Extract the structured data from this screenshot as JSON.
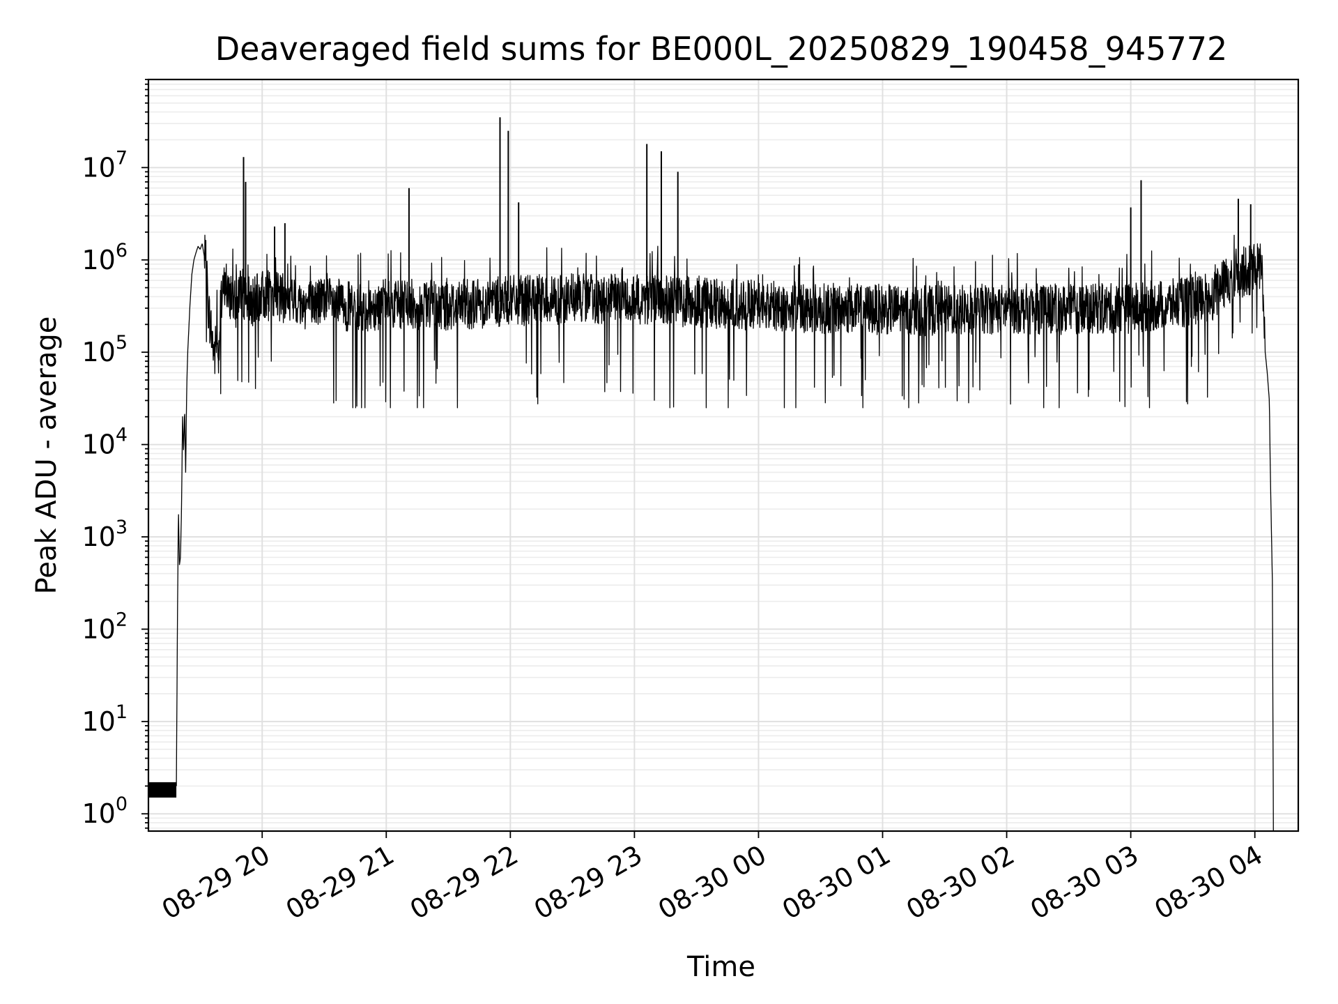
{
  "chart_data": {
    "type": "line",
    "title": "Deaveraged field sums for BE000L_20250829_190458_945772",
    "xlabel": "Time",
    "ylabel": "Peak ADU - average",
    "yscale": "log",
    "ylim": [
      0.65,
      90000000
    ],
    "xlim": [
      "2025-08-29 19:05:00",
      "2025-08-30 04:21:00"
    ],
    "grid": true,
    "legend": "none",
    "x_ticks": [
      {
        "t": "2025-08-29 20:00",
        "label": "08-29 20"
      },
      {
        "t": "2025-08-29 21:00",
        "label": "08-29 21"
      },
      {
        "t": "2025-08-29 22:00",
        "label": "08-29 22"
      },
      {
        "t": "2025-08-29 23:00",
        "label": "08-29 23"
      },
      {
        "t": "2025-08-30 00:00",
        "label": "08-30 00"
      },
      {
        "t": "2025-08-30 01:00",
        "label": "08-30 01"
      },
      {
        "t": "2025-08-30 02:00",
        "label": "08-30 02"
      },
      {
        "t": "2025-08-30 03:00",
        "label": "08-30 03"
      },
      {
        "t": "2025-08-30 04:00",
        "label": "08-30 04"
      }
    ],
    "y_ticks": [
      {
        "value": 1,
        "base": "10",
        "exp": "0"
      },
      {
        "value": 10,
        "base": "10",
        "exp": "1"
      },
      {
        "value": 100,
        "base": "10",
        "exp": "2"
      },
      {
        "value": 1000,
        "base": "10",
        "exp": "3"
      },
      {
        "value": 10000,
        "base": "10",
        "exp": "4"
      },
      {
        "value": 100000,
        "base": "10",
        "exp": "5"
      },
      {
        "value": 1000000,
        "base": "10",
        "exp": "6"
      },
      {
        "value": 10000000,
        "base": "10",
        "exp": "7"
      }
    ],
    "series": [
      {
        "color": "#000000",
        "initial_band": {
          "t_start": "2025-08-29 19:05:00",
          "t_end": "2025-08-29 19:18:30",
          "low": 1.5,
          "high": 2.2
        },
        "x": [
          "2025-08-29 19:18:30",
          "2025-08-29 19:19:00",
          "2025-08-29 19:19:30",
          "2025-08-29 19:20:00",
          "2025-08-29 19:20:30",
          "2025-08-29 19:21:00",
          "2025-08-29 19:21:30",
          "2025-08-29 19:22:00",
          "2025-08-29 19:22:30",
          "2025-08-29 19:23:00",
          "2025-08-29 19:23:30",
          "2025-08-29 19:24:00",
          "2025-08-29 19:25:00",
          "2025-08-29 19:26:00",
          "2025-08-29 19:27:00",
          "2025-08-29 19:28:00",
          "2025-08-29 19:29:00",
          "2025-08-29 19:30:00",
          "2025-08-29 19:31:00",
          "2025-08-29 19:32:00",
          "2025-08-29 19:33:00",
          "2025-08-29 19:34:00",
          "2025-08-29 19:35:00",
          "2025-08-29 19:36:00",
          "2025-08-29 19:37:00",
          "2025-08-29 19:38:00",
          "2025-08-29 19:39:00",
          "2025-08-29 19:40:00",
          "2025-08-29 19:41:00",
          "2025-08-29 19:42:00",
          "2025-08-29 19:43:00",
          "2025-08-29 19:44:00",
          "2025-08-29 19:45:00",
          "2025-08-29 19:47:00",
          "2025-08-29 19:49:00",
          "2025-08-29 19:52:00",
          "2025-08-29 19:56:00",
          "2025-08-29 20:00:00",
          "2025-08-29 20:10:00",
          "2025-08-29 20:20:00",
          "2025-08-29 20:30:00",
          "2025-08-29 20:45:00",
          "2025-08-29 21:00:00",
          "2025-08-29 21:30:00",
          "2025-08-29 22:00:00",
          "2025-08-29 22:30:00",
          "2025-08-29 23:00:00",
          "2025-08-29 23:30:00",
          "2025-08-30 00:00:00",
          "2025-08-30 00:30:00",
          "2025-08-30 01:00:00",
          "2025-08-30 01:30:00",
          "2025-08-30 02:00:00",
          "2025-08-30 02:30:00",
          "2025-08-30 03:00:00",
          "2025-08-30 03:30:00",
          "2025-08-30 03:40:00",
          "2025-08-30 03:50:00",
          "2025-08-30 04:00:00",
          "2025-08-30 04:03:00",
          "2025-08-30 04:04:00",
          "2025-08-30 04:05:00",
          "2025-08-30 04:06:00",
          "2025-08-30 04:07:00",
          "2025-08-30 04:07:30",
          "2025-08-30 04:08:00",
          "2025-08-30 04:08:30",
          "2025-08-30 04:09:00"
        ],
        "y": [
          2,
          100,
          2000,
          500,
          600,
          2000,
          20000,
          8000,
          25000,
          5000,
          40000,
          100000,
          300000,
          700000,
          1000000,
          1200000,
          1400000,
          1300000,
          1500000,
          1100000,
          800000,
          300000,
          200000,
          130000,
          90000,
          150000,
          100000,
          300000,
          400000,
          600000,
          500000,
          350000,
          450000,
          300000,
          500000,
          400000,
          350000,
          420000,
          380000,
          330000,
          360000,
          300000,
          340000,
          320000,
          360000,
          380000,
          370000,
          350000,
          320000,
          300000,
          290000,
          280000,
          300000,
          290000,
          300000,
          350000,
          420000,
          700000,
          800000,
          900000,
          500000,
          100000,
          60000,
          30000,
          5000,
          1200,
          300,
          0.5
        ]
      }
    ],
    "spikes": [
      {
        "t": "2025-08-29 19:51:00",
        "y": 13000000
      },
      {
        "t": "2025-08-29 19:52:00",
        "y": 7000000
      },
      {
        "t": "2025-08-29 20:06:00",
        "y": 2300000
      },
      {
        "t": "2025-08-29 20:11:00",
        "y": 2500000
      },
      {
        "t": "2025-08-29 21:11:00",
        "y": 6000000
      },
      {
        "t": "2025-08-29 21:55:00",
        "y": 35000000
      },
      {
        "t": "2025-08-29 21:59:00",
        "y": 25000000
      },
      {
        "t": "2025-08-29 22:04:00",
        "y": 4200000
      },
      {
        "t": "2025-08-29 23:06:00",
        "y": 18000000
      },
      {
        "t": "2025-08-29 23:13:00",
        "y": 15000000
      },
      {
        "t": "2025-08-29 23:21:00",
        "y": 9000000
      },
      {
        "t": "2025-08-30 03:00:00",
        "y": 3700000
      },
      {
        "t": "2025-08-30 03:05:00",
        "y": 7300000
      },
      {
        "t": "2025-08-30 03:52:00",
        "y": 4600000
      },
      {
        "t": "2025-08-30 03:58:00",
        "y": 4000000
      }
    ],
    "noise": {
      "t_start": "2025-08-29 19:32:00",
      "t_end": "2025-08-30 04:05:00",
      "dip_floor": 25000
    }
  }
}
